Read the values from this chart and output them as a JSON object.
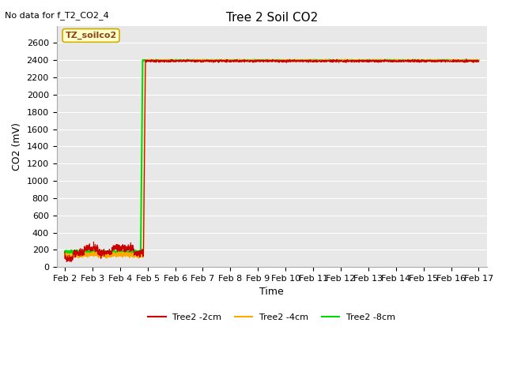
{
  "title": "Tree 2 Soil CO2",
  "no_data_text": "No data for f_T2_CO2_4",
  "xlabel": "Time",
  "ylabel": "CO2 (mV)",
  "ylim": [
    0,
    2800
  ],
  "yticks": [
    0,
    200,
    400,
    600,
    800,
    1000,
    1200,
    1400,
    1600,
    1800,
    2000,
    2200,
    2400,
    2600
  ],
  "xtick_days": [
    2,
    3,
    4,
    5,
    6,
    7,
    8,
    9,
    10,
    11,
    12,
    13,
    14,
    15,
    16,
    17
  ],
  "xtick_labels": [
    "Feb 2",
    "Feb 3",
    "Feb 4",
    "Feb 5",
    "Feb 6",
    "Feb 7",
    "Feb 8",
    "Feb 9",
    "Feb 10",
    "Feb 11",
    "Feb 12",
    "Feb 13",
    "Feb 14",
    "Feb 15",
    "Feb 16",
    "Feb 17"
  ],
  "annotation_text": "TZ_soilco2",
  "bg_color": "#e8e8e8",
  "grid_color": "#ffffff",
  "fig_bg_color": "#ffffff",
  "line_2cm_color": "#cc0000",
  "line_4cm_color": "#ffaa00",
  "line_8cm_color": "#00dd00",
  "legend_labels": [
    "Tree2 -2cm",
    "Tree2 -4cm",
    "Tree2 -8cm"
  ],
  "legend_colors": [
    "#cc0000",
    "#ffaa00",
    "#00dd00"
  ],
  "title_fontsize": 11,
  "axis_fontsize": 9,
  "tick_fontsize": 8,
  "legend_fontsize": 8
}
